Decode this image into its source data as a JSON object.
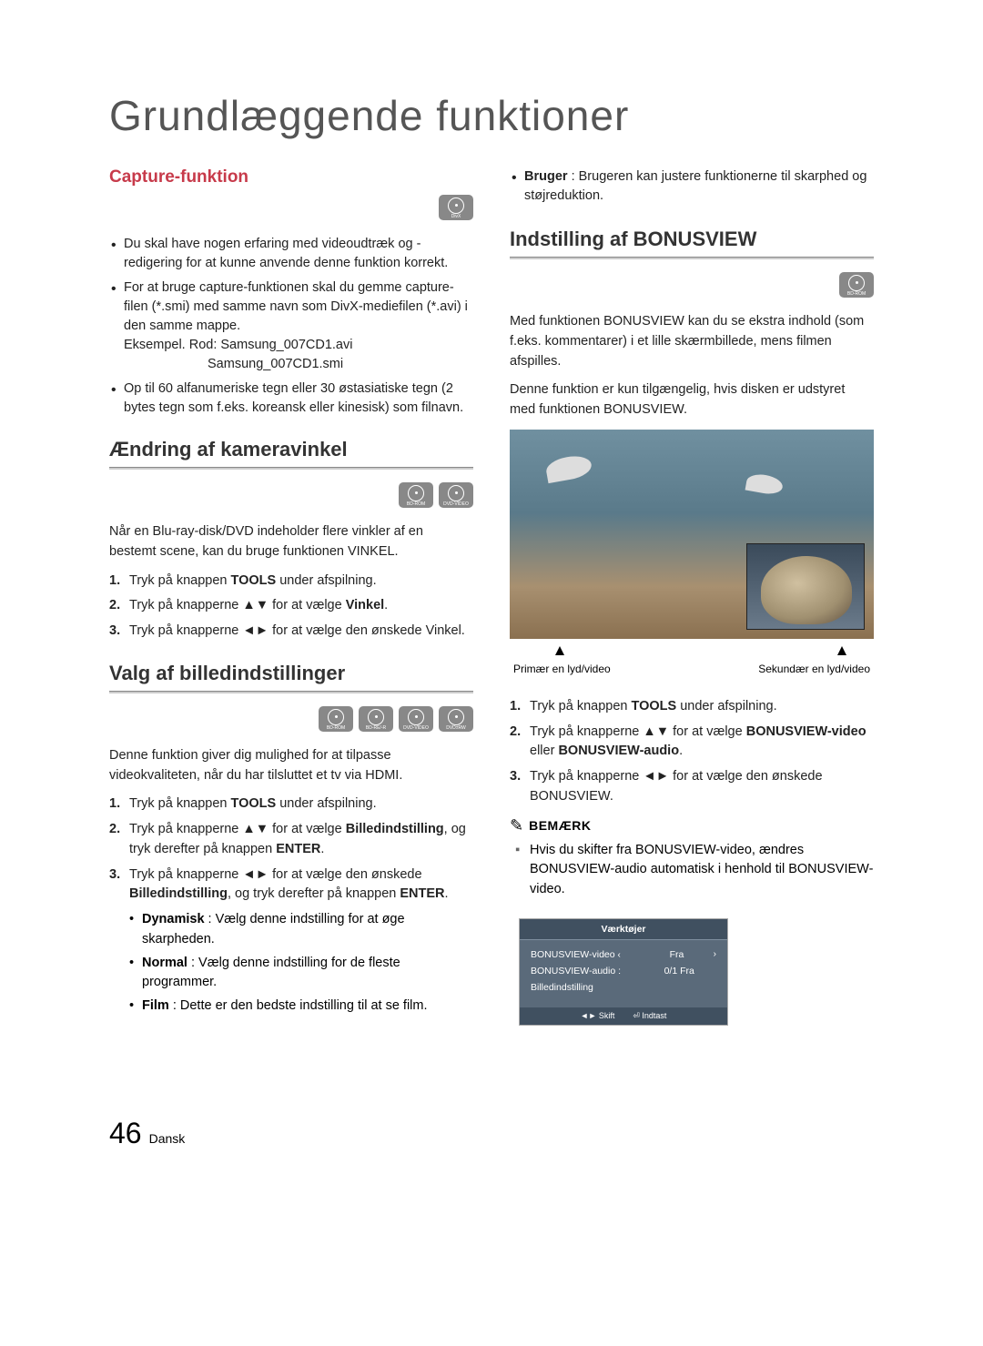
{
  "page_title": "Grundlæggende funktioner",
  "footer": {
    "page_number": "46",
    "language": "Dansk"
  },
  "left": {
    "capture": {
      "heading": "Capture-funktion",
      "icons": [
        "DivX"
      ],
      "bullets": [
        "Du skal have nogen erfaring med videoudtræk og -redigering for at kunne anvende denne funktion korrekt.",
        "For at bruge capture-funktionen skal du gemme capture-filen (*.smi) med samme navn som DivX-mediefilen (*.avi) i den samme mappe.",
        "Op til 60 alfanumeriske tegn eller 30 østasiatiske tegn (2 bytes tegn som f.eks. koreansk eller kinesisk) som filnavn."
      ],
      "example_label": "Eksempel. Rod: Samsung_007CD1.avi",
      "example_line2": "Samsung_007CD1.smi"
    },
    "angle": {
      "heading": "Ændring af kameravinkel",
      "icons": [
        "BD-ROM",
        "DVD-VIDEO"
      ],
      "intro": "Når en Blu-ray-disk/DVD indeholder flere vinkler af en bestemt scene, kan du bruge funktionen VINKEL.",
      "steps": [
        "Tryk på knappen <b>TOOLS</b> under afspilning.",
        "Tryk på knapperne ▲▼ for at vælge <b>Vinkel</b>.",
        "Tryk på knapperne ◄► for at vælge den ønskede Vinkel."
      ]
    },
    "picture": {
      "heading": "Valg af billedindstillinger",
      "icons": [
        "BD-ROM",
        "BD-RE/-R",
        "DVD-VIDEO",
        "DVD±RW/±R"
      ],
      "intro": "Denne funktion giver dig mulighed for at tilpasse videokvaliteten, når du har tilsluttet et tv via HDMI.",
      "steps": [
        "Tryk på knappen <b>TOOLS</b> under afspilning.",
        "Tryk på knapperne ▲▼ for at vælge <b>Billedindstilling</b>, og tryk derefter på knappen <b>ENTER</b>.",
        "Tryk på knapperne ◄► for at vælge den ønskede <b>Billedindstilling</b>, og tryk derefter på knappen <b>ENTER</b>."
      ],
      "sub_bullets": [
        "<b>Dynamisk</b> : Vælg denne indstilling for at øge skarpheden.",
        "<b>Normal</b> : Vælg denne indstilling for de fleste programmer.",
        "<b>Film</b> : Dette er den bedste indstilling til at se film."
      ]
    }
  },
  "right": {
    "top_bullet": "<b>Bruger</b> : Brugeren kan justere funktionerne til skarphed og støjreduktion.",
    "bonus": {
      "heading": "Indstilling af BONUSVIEW",
      "icons": [
        "BD-ROM"
      ],
      "intro1": "Med funktionen BONUSVIEW kan du se ekstra indhold (som f.eks. kommentarer) i et lille skærmbillede, mens filmen afspilles.",
      "intro2": "Denne funktion er kun tilgængelig, hvis disken er udstyret med funktionen BONUSVIEW.",
      "caption_primary": "Primær en lyd/video",
      "caption_secondary": "Sekundær en lyd/video",
      "steps": [
        "Tryk på knappen <b>TOOLS</b> under afspilning.",
        "Tryk på knapperne ▲▼ for at vælge <b>BONUSVIEW-video</b> eller <b>BONUSVIEW-audio</b>.",
        "Tryk på knapperne ◄► for at vælge den ønskede BONUSVIEW."
      ],
      "note_label": "BEMÆRK",
      "note_text": "Hvis du skifter fra BONUSVIEW-video, ændres BONUSVIEW-audio automatisk i henhold til BONUSVIEW-video."
    },
    "tools_box": {
      "title": "Værktøjer",
      "rows": [
        {
          "left": "BONUSVIEW-video",
          "mid": "Fra",
          "chev": true
        },
        {
          "left": "BONUSVIEW-audio :",
          "mid": "0/1 Fra",
          "chev": false
        },
        {
          "left": "Billedindstilling",
          "mid": "",
          "chev": false
        }
      ],
      "footer_left": "◄► Skift",
      "footer_right": "⏎ Indtast"
    }
  }
}
